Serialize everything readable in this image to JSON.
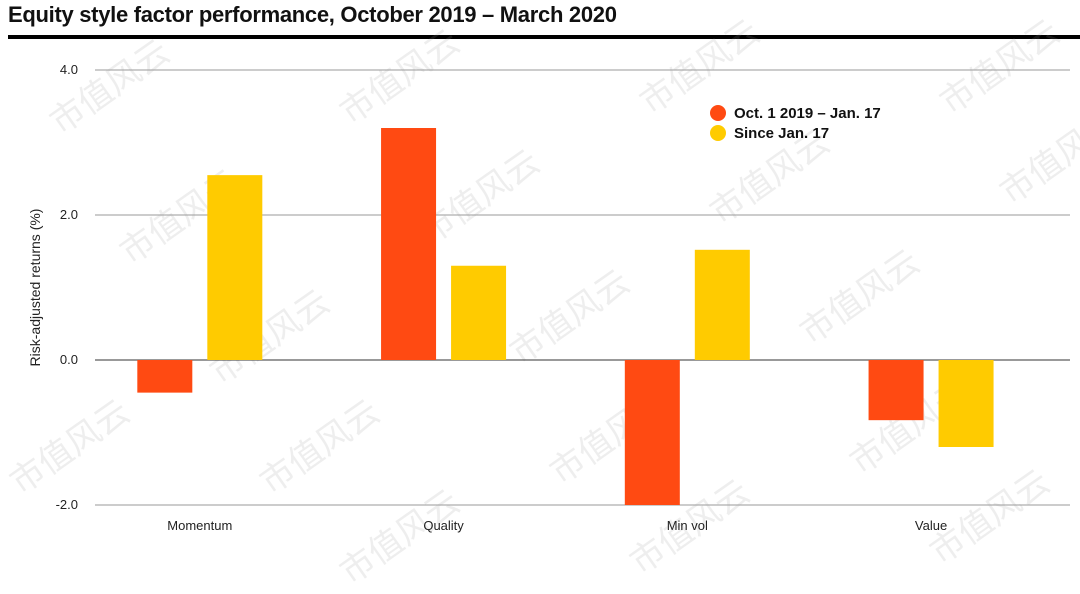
{
  "title": "Equity style factor performance, October 2019 – March 2020",
  "watermark_text": "市值风云",
  "colors": {
    "series1": "#FF4A12",
    "series2": "#FFCB00",
    "gridline": "#9a9a9a",
    "zero_line": "#333333",
    "title_rule": "#000000"
  },
  "chart_data": {
    "type": "bar",
    "title": "Equity style factor performance, October 2019 – March 2020",
    "xlabel": "",
    "ylabel": "Risk-adjusted returns (%)",
    "ylim": [
      -2.0,
      4.0
    ],
    "yticks": [
      -2.0,
      0.0,
      2.0,
      4.0
    ],
    "ytick_labels": [
      "-2.0",
      "0.0",
      "2.0",
      "4.0"
    ],
    "grid": true,
    "legend_position": "top-right",
    "categories": [
      "Momentum",
      "Quality",
      "Min vol",
      "Value"
    ],
    "series": [
      {
        "name": "Oct. 1 2019 – Jan. 17",
        "values": [
          -0.45,
          3.2,
          -2.0,
          -0.83
        ]
      },
      {
        "name": "Since Jan. 17",
        "values": [
          2.55,
          1.3,
          1.52,
          -1.2
        ]
      }
    ]
  }
}
